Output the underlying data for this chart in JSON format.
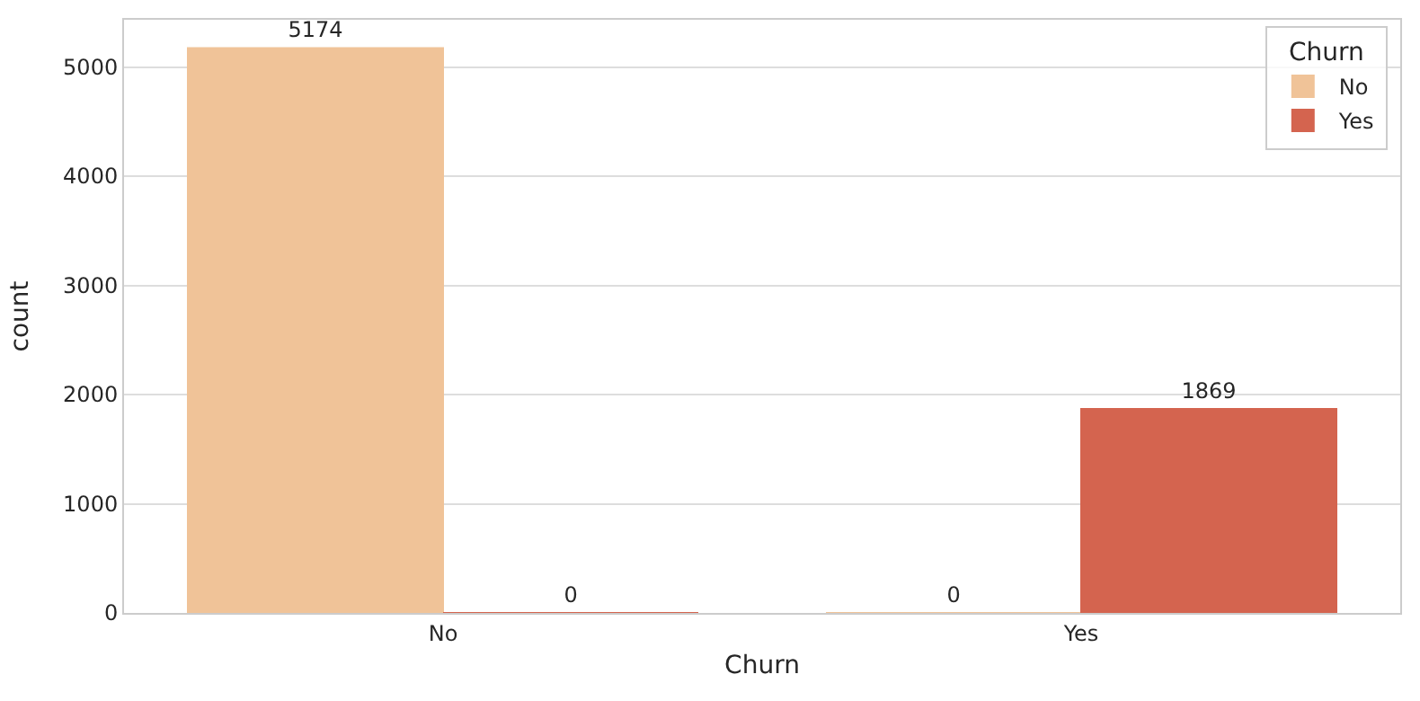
{
  "chart_data": {
    "type": "bar",
    "categories": [
      "No",
      "Yes"
    ],
    "xlabel": "Churn",
    "ylabel": "count",
    "legend_title": "Churn",
    "series": [
      {
        "name": "No",
        "color": "#f0c398",
        "values": [
          5174,
          0
        ]
      },
      {
        "name": "Yes",
        "color": "#d4644f",
        "values": [
          0,
          1869
        ]
      }
    ],
    "ylim": [
      0,
      5433
    ],
    "yticks": [
      0,
      1000,
      2000,
      3000,
      4000,
      5000
    ],
    "grid": "y",
    "legend": "top right",
    "data_labels": true
  }
}
